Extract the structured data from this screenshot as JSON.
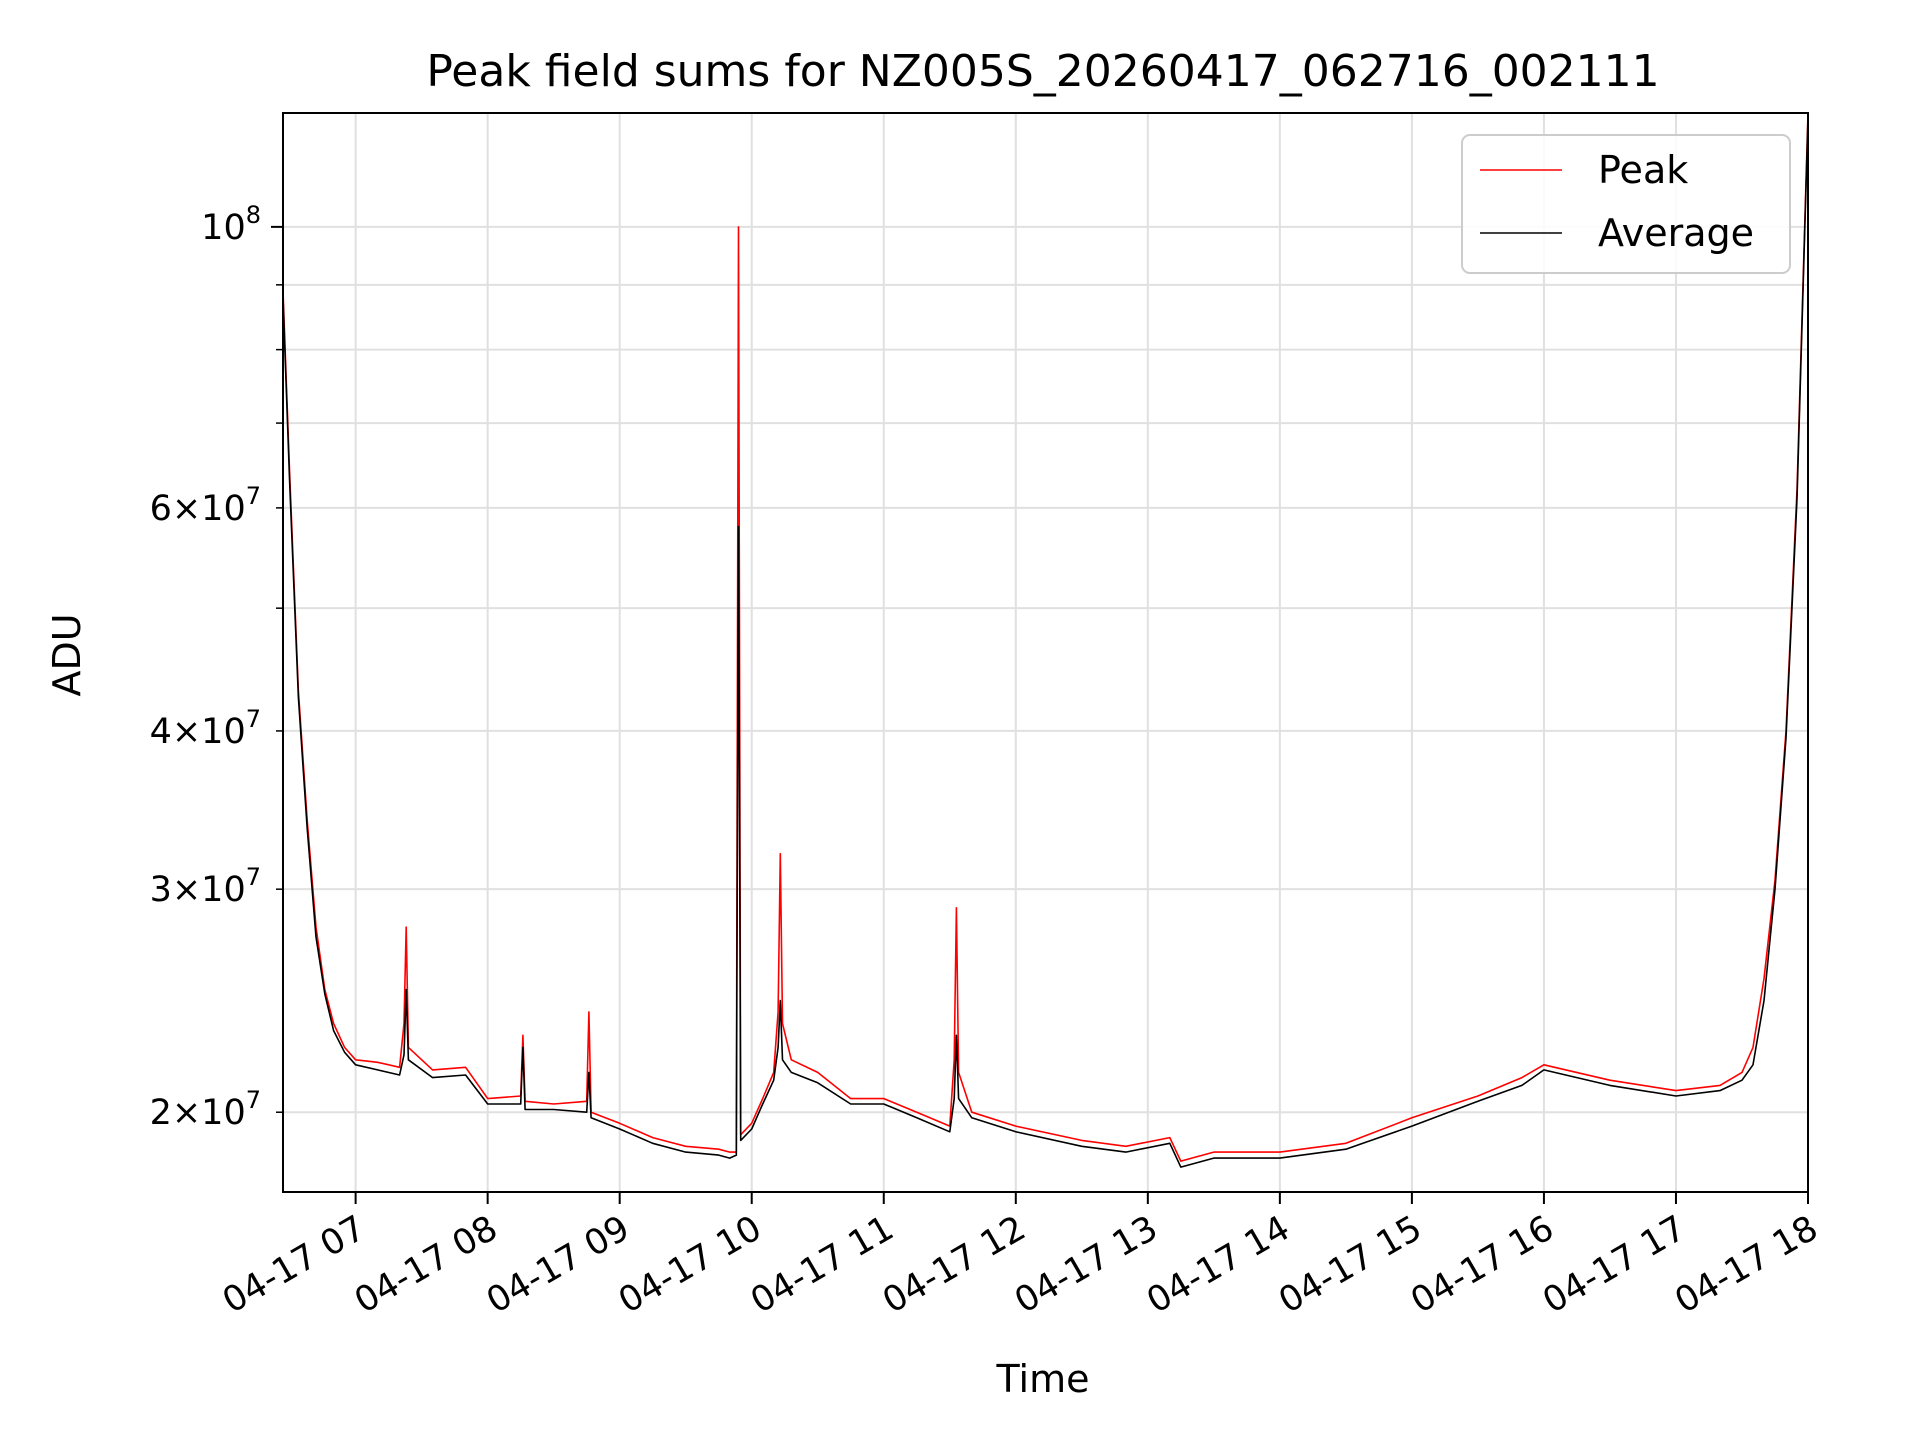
{
  "chart_data": {
    "type": "line",
    "title": "Peak field sums for NZ005S_20260417_062716_002111",
    "xlabel": "Time",
    "ylabel": "ADU",
    "yscale": "log",
    "grid": true,
    "legend_position": "top-right",
    "xlim": [
      "2026-04-17 06:27",
      "2026-04-17 18:00"
    ],
    "ylim": [
      17300000,
      123000000
    ],
    "x_ticks": [
      {
        "t": "2026-04-17 07:00",
        "label": "04-17 07"
      },
      {
        "t": "2026-04-17 08:00",
        "label": "04-17 08"
      },
      {
        "t": "2026-04-17 09:00",
        "label": "04-17 09"
      },
      {
        "t": "2026-04-17 10:00",
        "label": "04-17 10"
      },
      {
        "t": "2026-04-17 11:00",
        "label": "04-17 11"
      },
      {
        "t": "2026-04-17 12:00",
        "label": "04-17 12"
      },
      {
        "t": "2026-04-17 13:00",
        "label": "04-17 13"
      },
      {
        "t": "2026-04-17 14:00",
        "label": "04-17 14"
      },
      {
        "t": "2026-04-17 15:00",
        "label": "04-17 15"
      },
      {
        "t": "2026-04-17 16:00",
        "label": "04-17 16"
      },
      {
        "t": "2026-04-17 17:00",
        "label": "04-17 17"
      },
      {
        "t": "2026-04-17 18:00",
        "label": "04-17 18"
      }
    ],
    "y_ticks_major": [
      {
        "value": 100000000,
        "base": "10",
        "exp": "8"
      }
    ],
    "y_ticks_minor": [
      {
        "value": 20000000,
        "mant": "2",
        "exp": "7"
      },
      {
        "value": 30000000,
        "mant": "3",
        "exp": "7"
      },
      {
        "value": 40000000,
        "mant": "4",
        "exp": "7"
      },
      {
        "value": 60000000,
        "mant": "6",
        "exp": "7"
      }
    ],
    "y_gridlines_unlabeled": [
      50000000,
      70000000,
      80000000,
      90000000
    ],
    "series": [
      {
        "name": "Peak",
        "color": "#ff0000",
        "x": [
          "2026-04-17 06:27",
          "2026-04-17 06:30",
          "2026-04-17 06:34",
          "2026-04-17 06:38",
          "2026-04-17 06:42",
          "2026-04-17 06:46",
          "2026-04-17 06:50",
          "2026-04-17 06:55",
          "2026-04-17 07:00",
          "2026-04-17 07:10",
          "2026-04-17 07:20",
          "2026-04-17 07:22",
          "2026-04-17 07:23",
          "2026-04-17 07:24",
          "2026-04-17 07:35",
          "2026-04-17 07:50",
          "2026-04-17 08:00",
          "2026-04-17 08:15",
          "2026-04-17 08:16",
          "2026-04-17 08:17",
          "2026-04-17 08:30",
          "2026-04-17 08:45",
          "2026-04-17 08:46",
          "2026-04-17 08:47",
          "2026-04-17 09:00",
          "2026-04-17 09:15",
          "2026-04-17 09:30",
          "2026-04-17 09:45",
          "2026-04-17 09:50",
          "2026-04-17 09:53",
          "2026-04-17 09:54",
          "2026-04-17 09:55",
          "2026-04-17 10:00",
          "2026-04-17 10:05",
          "2026-04-17 10:10",
          "2026-04-17 10:12",
          "2026-04-17 10:13",
          "2026-04-17 10:14",
          "2026-04-17 10:18",
          "2026-04-17 10:30",
          "2026-04-17 10:45",
          "2026-04-17 11:00",
          "2026-04-17 11:15",
          "2026-04-17 11:30",
          "2026-04-17 11:32",
          "2026-04-17 11:33",
          "2026-04-17 11:34",
          "2026-04-17 11:40",
          "2026-04-17 12:00",
          "2026-04-17 12:30",
          "2026-04-17 12:50",
          "2026-04-17 13:10",
          "2026-04-17 13:15",
          "2026-04-17 13:30",
          "2026-04-17 14:00",
          "2026-04-17 14:30",
          "2026-04-17 15:00",
          "2026-04-17 15:30",
          "2026-04-17 15:50",
          "2026-04-17 16:00",
          "2026-04-17 16:30",
          "2026-04-17 17:00",
          "2026-04-17 17:20",
          "2026-04-17 17:30",
          "2026-04-17 17:35",
          "2026-04-17 17:40",
          "2026-04-17 17:45",
          "2026-04-17 17:50",
          "2026-04-17 17:55",
          "2026-04-17 18:00"
        ],
        "y": [
          89000000,
          64000000,
          43000000,
          34000000,
          28000000,
          25000000,
          23500000,
          22500000,
          22000000,
          21900000,
          21700000,
          23500000,
          28000000,
          22500000,
          21600000,
          21700000,
          20500000,
          20600000,
          23000000,
          20400000,
          20300000,
          20400000,
          24000000,
          20000000,
          19600000,
          19100000,
          18800000,
          18700000,
          18600000,
          18600000,
          100000000,
          19200000,
          19600000,
          20500000,
          21500000,
          24000000,
          32000000,
          23500000,
          22000000,
          21500000,
          20500000,
          20500000,
          20000000,
          19500000,
          22000000,
          29000000,
          21500000,
          20000000,
          19500000,
          19000000,
          18800000,
          19100000,
          18300000,
          18600000,
          18600000,
          18900000,
          19800000,
          20600000,
          21300000,
          21800000,
          21200000,
          20800000,
          21000000,
          21500000,
          22500000,
          25500000,
          30500000,
          40000000,
          62000000,
          123000000
        ]
      },
      {
        "name": "Average",
        "color": "#000000",
        "x": [
          "2026-04-17 06:27",
          "2026-04-17 06:30",
          "2026-04-17 06:34",
          "2026-04-17 06:38",
          "2026-04-17 06:42",
          "2026-04-17 06:46",
          "2026-04-17 06:50",
          "2026-04-17 06:55",
          "2026-04-17 07:00",
          "2026-04-17 07:10",
          "2026-04-17 07:20",
          "2026-04-17 07:22",
          "2026-04-17 07:23",
          "2026-04-17 07:24",
          "2026-04-17 07:35",
          "2026-04-17 07:50",
          "2026-04-17 08:00",
          "2026-04-17 08:15",
          "2026-04-17 08:16",
          "2026-04-17 08:17",
          "2026-04-17 08:30",
          "2026-04-17 08:45",
          "2026-04-17 08:46",
          "2026-04-17 08:47",
          "2026-04-17 09:00",
          "2026-04-17 09:15",
          "2026-04-17 09:30",
          "2026-04-17 09:45",
          "2026-04-17 09:50",
          "2026-04-17 09:53",
          "2026-04-17 09:54",
          "2026-04-17 09:55",
          "2026-04-17 10:00",
          "2026-04-17 10:05",
          "2026-04-17 10:10",
          "2026-04-17 10:12",
          "2026-04-17 10:13",
          "2026-04-17 10:14",
          "2026-04-17 10:18",
          "2026-04-17 10:30",
          "2026-04-17 10:45",
          "2026-04-17 11:00",
          "2026-04-17 11:15",
          "2026-04-17 11:30",
          "2026-04-17 11:32",
          "2026-04-17 11:33",
          "2026-04-17 11:34",
          "2026-04-17 11:40",
          "2026-04-17 12:00",
          "2026-04-17 12:30",
          "2026-04-17 12:50",
          "2026-04-17 13:10",
          "2026-04-17 13:15",
          "2026-04-17 13:30",
          "2026-04-17 14:00",
          "2026-04-17 14:30",
          "2026-04-17 15:00",
          "2026-04-17 15:30",
          "2026-04-17 15:50",
          "2026-04-17 16:00",
          "2026-04-17 16:30",
          "2026-04-17 17:00",
          "2026-04-17 17:20",
          "2026-04-17 17:30",
          "2026-04-17 17:35",
          "2026-04-17 17:40",
          "2026-04-17 17:45",
          "2026-04-17 17:50",
          "2026-04-17 17:55",
          "2026-04-17 18:00"
        ],
        "y": [
          88000000,
          63000000,
          42500000,
          33500000,
          27500000,
          24800000,
          23200000,
          22300000,
          21800000,
          21600000,
          21400000,
          22200000,
          25000000,
          22000000,
          21300000,
          21400000,
          20300000,
          20300000,
          22500000,
          20100000,
          20100000,
          20000000,
          21500000,
          19800000,
          19400000,
          18900000,
          18600000,
          18500000,
          18400000,
          18500000,
          58000000,
          19000000,
          19400000,
          20300000,
          21200000,
          22500000,
          24500000,
          22000000,
          21500000,
          21100000,
          20300000,
          20300000,
          19800000,
          19300000,
          20500000,
          23000000,
          20500000,
          19800000,
          19300000,
          18800000,
          18600000,
          18900000,
          18100000,
          18400000,
          18400000,
          18700000,
          19500000,
          20400000,
          21000000,
          21600000,
          21000000,
          20600000,
          20800000,
          21200000,
          21800000,
          24500000,
          30000000,
          39500000,
          61000000,
          122000000
        ]
      }
    ]
  }
}
